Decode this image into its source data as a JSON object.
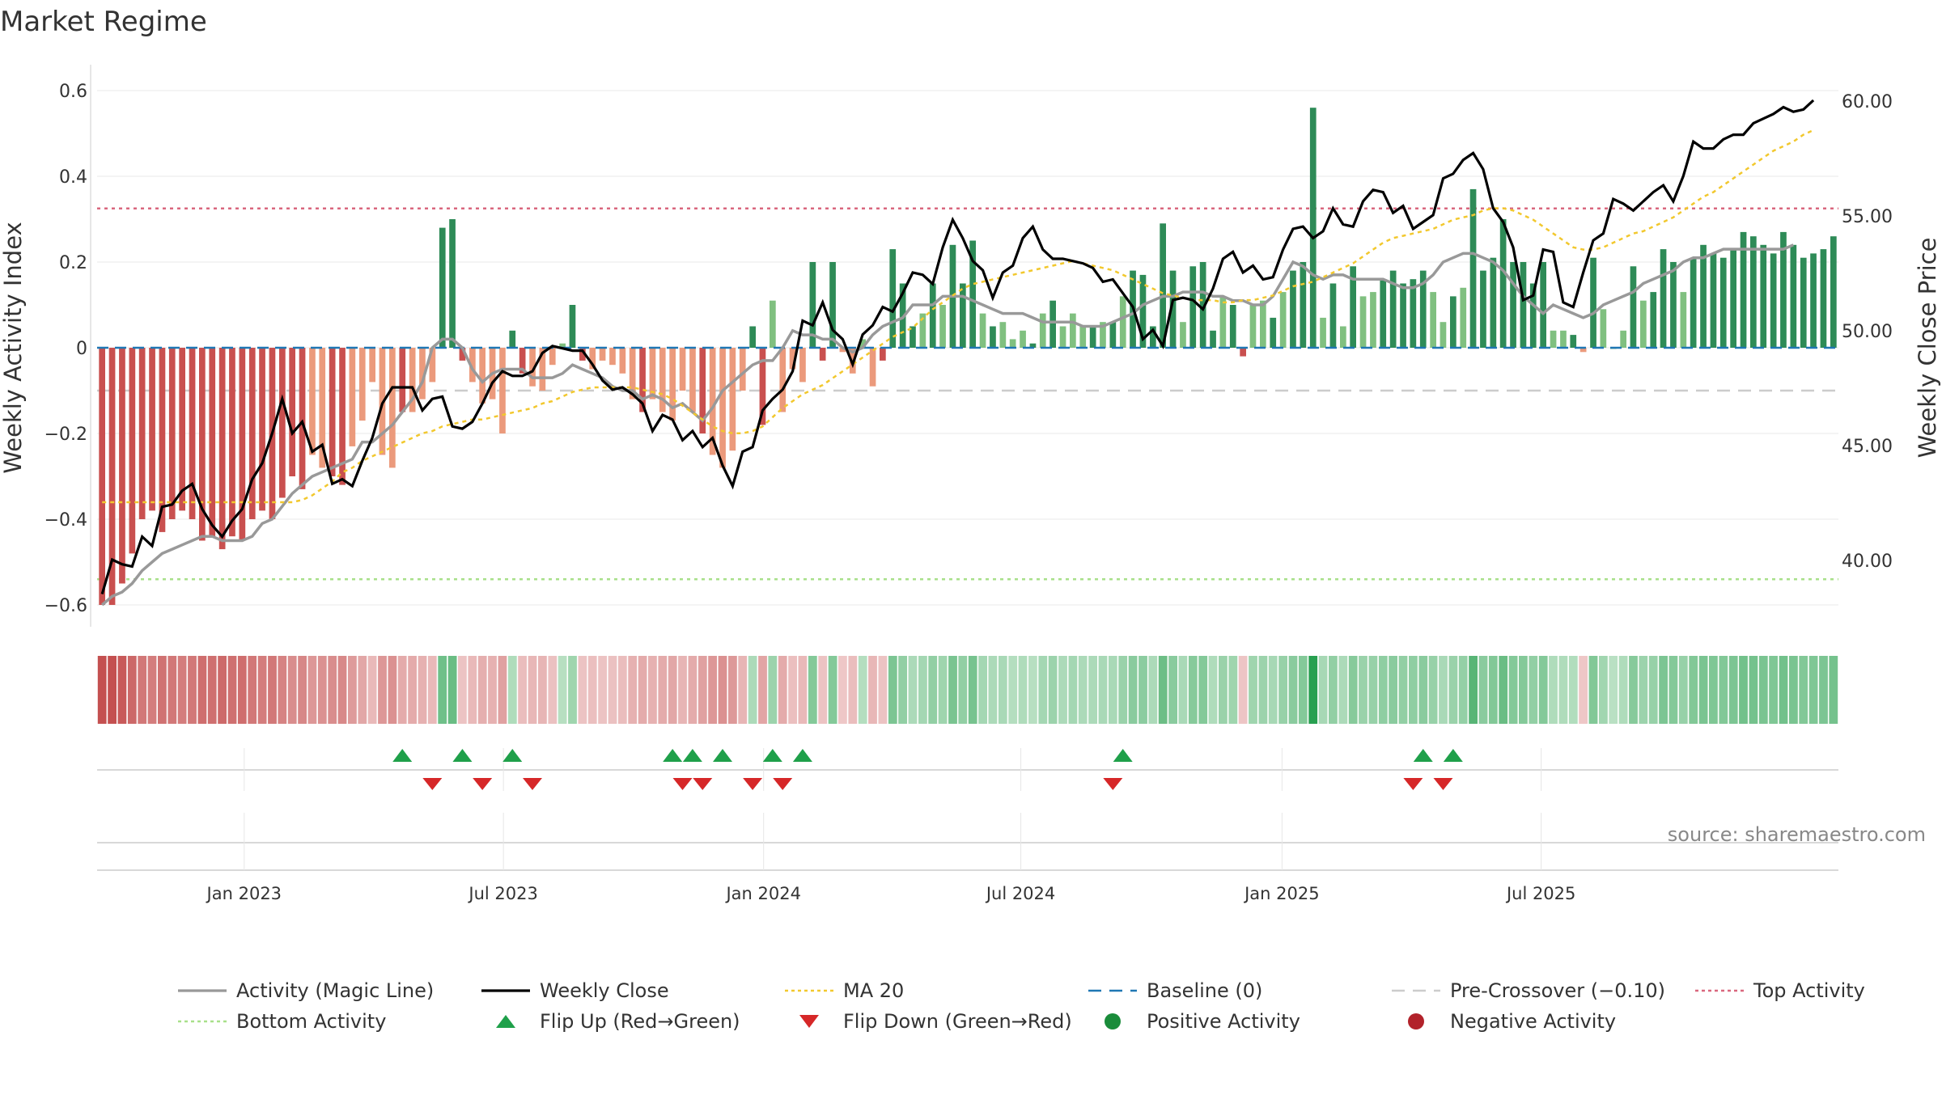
{
  "chart_data": {
    "type": "bar",
    "title": "Market Regime",
    "source": "source: sharemaestro.com",
    "left_axis": {
      "label": "Weekly Activity Index",
      "ylim": [
        -0.66,
        0.66
      ],
      "ticks": [
        0.6,
        0.4,
        0.2,
        0,
        -0.2,
        -0.4,
        -0.6
      ],
      "tick_labels": [
        "0.6",
        "0.4",
        "0.2",
        "0",
        "−0.2",
        "−0.4",
        "−0.6"
      ]
    },
    "right_axis": {
      "label": "Weekly Close Price",
      "ticks": [
        60,
        55,
        50,
        45,
        40
      ],
      "tick_labels": [
        "60.00",
        "55.00",
        "50.00",
        "45.00",
        "40.00"
      ]
    },
    "x_axis": {
      "tick_labels": [
        "Jan 2023",
        "Jul 2023",
        "Jan 2024",
        "Jul 2024",
        "Jan 2025",
        "Jul 2025"
      ],
      "tick_positions": [
        14.2,
        40.1,
        66.1,
        91.8,
        117.9,
        143.8
      ]
    },
    "reference_lines": {
      "baseline": 0,
      "pre_crossover": -0.1,
      "top_activity": 0.325,
      "bottom_activity": -0.54
    },
    "activity_bars": [
      -0.6,
      -0.6,
      -0.55,
      -0.48,
      -0.4,
      -0.38,
      -0.43,
      -0.4,
      -0.38,
      -0.4,
      -0.45,
      -0.44,
      -0.47,
      -0.44,
      -0.45,
      -0.4,
      -0.38,
      -0.4,
      -0.35,
      -0.3,
      -0.33,
      -0.25,
      -0.28,
      -0.3,
      -0.32,
      -0.23,
      -0.17,
      -0.08,
      -0.25,
      -0.28,
      -0.15,
      -0.15,
      -0.12,
      -0.08,
      0.28,
      0.3,
      -0.03,
      -0.08,
      -0.13,
      -0.12,
      -0.2,
      0.04,
      -0.06,
      -0.09,
      -0.1,
      -0.04,
      0.01,
      0.1,
      -0.03,
      -0.05,
      -0.03,
      -0.04,
      -0.06,
      -0.12,
      -0.15,
      -0.12,
      -0.15,
      -0.17,
      -0.1,
      -0.15,
      -0.2,
      -0.25,
      -0.28,
      -0.24,
      -0.1,
      0.05,
      -0.18,
      0.11,
      -0.15,
      -0.05,
      -0.08,
      0.2,
      -0.03,
      0.2,
      -0.01,
      -0.06,
      0.02,
      -0.09,
      -0.03,
      0.23,
      0.15,
      0.05,
      0.08,
      0.15,
      0.1,
      0.24,
      0.15,
      0.25,
      0.08,
      0.05,
      0.06,
      0.02,
      0.04,
      0.01,
      0.08,
      0.11,
      0.05,
      0.08,
      0.05,
      0.05,
      0.06,
      0.06,
      0.12,
      0.18,
      0.17,
      0.05,
      0.29,
      0.18,
      0.06,
      0.19,
      0.2,
      0.04,
      0.12,
      0.1,
      -0.02,
      0.1,
      0.11,
      0.07,
      0.13,
      0.18,
      0.2,
      0.56,
      0.07,
      0.15,
      0.05,
      0.19,
      0.12,
      0.13,
      0.16,
      0.18,
      0.15,
      0.16,
      0.18,
      0.13,
      0.06,
      0.12,
      0.14,
      0.37,
      0.18,
      0.21,
      0.3,
      0.2,
      0.2,
      0.15,
      0.2,
      0.04,
      0.04,
      0.03,
      -0.01,
      0.21,
      0.09,
      0.0,
      0.04,
      0.19,
      0.11,
      0.13,
      0.23,
      0.2,
      0.13,
      0.21,
      0.24,
      0.22,
      0.21,
      0.23,
      0.27,
      0.26,
      0.24,
      0.22,
      0.27,
      0.24,
      0.21,
      0.22,
      0.23,
      0.26
    ],
    "activity_magic_line": [
      -0.6,
      -0.58,
      -0.57,
      -0.55,
      -0.52,
      -0.5,
      -0.48,
      -0.47,
      -0.46,
      -0.45,
      -0.44,
      -0.44,
      -0.45,
      -0.45,
      -0.45,
      -0.44,
      -0.41,
      -0.4,
      -0.37,
      -0.34,
      -0.32,
      -0.3,
      -0.29,
      -0.28,
      -0.27,
      -0.26,
      -0.22,
      -0.22,
      -0.2,
      -0.18,
      -0.15,
      -0.12,
      -0.08,
      0.0,
      0.02,
      0.02,
      0.0,
      -0.05,
      -0.08,
      -0.06,
      -0.05,
      -0.05,
      -0.05,
      -0.07,
      -0.07,
      -0.07,
      -0.06,
      -0.04,
      -0.05,
      -0.06,
      -0.07,
      -0.09,
      -0.1,
      -0.1,
      -0.12,
      -0.11,
      -0.12,
      -0.14,
      -0.13,
      -0.15,
      -0.17,
      -0.14,
      -0.1,
      -0.08,
      -0.06,
      -0.04,
      -0.03,
      -0.03,
      0.0,
      0.04,
      0.03,
      0.03,
      0.02,
      0.02,
      0.0,
      -0.01,
      0.0,
      0.03,
      0.05,
      0.06,
      0.07,
      0.1,
      0.1,
      0.1,
      0.12,
      0.12,
      0.12,
      0.11,
      0.1,
      0.09,
      0.08,
      0.08,
      0.08,
      0.07,
      0.06,
      0.06,
      0.06,
      0.06,
      0.05,
      0.05,
      0.05,
      0.06,
      0.07,
      0.08,
      0.1,
      0.11,
      0.12,
      0.12,
      0.13,
      0.13,
      0.13,
      0.12,
      0.12,
      0.11,
      0.11,
      0.1,
      0.1,
      0.12,
      0.16,
      0.2,
      0.19,
      0.17,
      0.16,
      0.17,
      0.17,
      0.16,
      0.16,
      0.16,
      0.16,
      0.15,
      0.14,
      0.14,
      0.15,
      0.17,
      0.2,
      0.21,
      0.22,
      0.22,
      0.21,
      0.2,
      0.18,
      0.15,
      0.12,
      0.1,
      0.08,
      0.1,
      0.09,
      0.08,
      0.07,
      0.08,
      0.1,
      0.11,
      0.12,
      0.13,
      0.15,
      0.16,
      0.17,
      0.18,
      0.2,
      0.21,
      0.21,
      0.22,
      0.23,
      0.23,
      0.23,
      0.23,
      0.23,
      0.23,
      0.23,
      0.24
    ],
    "weekly_close": [
      38.5,
      40,
      39.8,
      39.7,
      41,
      40.6,
      42.3,
      42.4,
      43,
      43.3,
      42.2,
      41.5,
      41,
      41.7,
      42.2,
      43.5,
      44.2,
      45.5,
      47,
      45.5,
      46,
      44.7,
      45,
      43.3,
      43.5,
      43.2,
      44.3,
      45.3,
      46.8,
      47.5,
      47.5,
      47.5,
      46.5,
      47,
      47.1,
      45.8,
      45.7,
      46,
      46.8,
      47.7,
      48.2,
      48,
      48,
      48.2,
      49,
      49.3,
      49.2,
      49.1,
      49.1,
      48.5,
      47.8,
      47.4,
      47.5,
      47.2,
      46.8,
      45.6,
      46.3,
      46.1,
      45.2,
      45.6,
      44.9,
      45.3,
      44.1,
      43.2,
      44.7,
      44.9,
      46.5,
      47,
      47.4,
      48.2,
      50.4,
      50.2,
      51.2,
      50,
      49.6,
      48.5,
      49.8,
      50.2,
      51,
      50.8,
      51.6,
      52.5,
      52.4,
      52,
      53.6,
      54.8,
      54,
      53,
      52.6,
      51.4,
      52.5,
      52.8,
      54,
      54.5,
      53.5,
      53.1,
      53.1,
      53,
      52.9,
      52.7,
      52.1,
      52.2,
      51.6,
      51,
      49.6,
      50,
      49.3,
      51.3,
      51.4,
      51.3,
      50.9,
      51.8,
      53.1,
      53.4,
      52.5,
      52.8,
      52.2,
      52.3,
      53.5,
      54.4,
      54.5,
      54,
      54.3,
      55.3,
      54.6,
      54.5,
      55.6,
      56.1,
      56,
      55.1,
      55.4,
      54.4,
      54.7,
      55,
      56.6,
      56.8,
      57.4,
      57.7,
      57,
      55.3,
      54.7,
      53.6,
      51.3,
      51.5,
      53.5,
      53.4,
      51.2,
      51,
      52.5,
      53.9,
      54.2,
      55.7,
      55.5,
      55.2,
      55.6,
      56,
      56.3,
      55.6,
      56.7,
      58.2,
      57.9,
      57.9,
      58.3,
      58.5,
      58.5,
      59,
      59.2,
      59.4,
      59.7,
      59.5,
      59.6,
      60
    ],
    "ma_20": [
      42.5,
      42.5,
      42.5,
      42.5,
      42.5,
      42.5,
      42.5,
      42.5,
      42.5,
      42.5,
      42.5,
      42.5,
      42.5,
      42.5,
      42.5,
      42.5,
      42.5,
      42.5,
      42.5,
      42.5,
      42.6,
      42.8,
      43.1,
      43.4,
      43.8,
      44,
      44.3,
      44.5,
      44.7,
      44.9,
      45.1,
      45.3,
      45.5,
      45.6,
      45.8,
      45.9,
      46,
      46.1,
      46.1,
      46.2,
      46.3,
      46.4,
      46.5,
      46.6,
      46.8,
      46.9,
      47.1,
      47.3,
      47.4,
      47.5,
      47.5,
      47.5,
      47.5,
      47.5,
      47.4,
      47.3,
      47.2,
      47,
      46.7,
      46.4,
      46.1,
      45.8,
      45.6,
      45.5,
      45.5,
      45.6,
      45.8,
      46.2,
      46.6,
      46.9,
      47.2,
      47.4,
      47.6,
      47.9,
      48.2,
      48.5,
      48.8,
      49.1,
      49.4,
      49.7,
      49.9,
      50.1,
      50.5,
      50.9,
      51.2,
      51.5,
      51.8,
      52,
      52.1,
      52.2,
      52.3,
      52.4,
      52.5,
      52.6,
      52.7,
      52.8,
      52.9,
      53,
      52.9,
      52.8,
      52.7,
      52.6,
      52.4,
      52.2,
      52,
      51.8,
      51.6,
      51.5,
      51.4,
      51.3,
      51.3,
      51.3,
      51.2,
      51.2,
      51.3,
      51.3,
      51.4,
      51.5,
      51.7,
      51.9,
      52,
      52.1,
      52.3,
      52.5,
      52.7,
      52.9,
      53.2,
      53.5,
      53.8,
      54,
      54.1,
      54.2,
      54.3,
      54.4,
      54.6,
      54.8,
      54.9,
      55,
      55.2,
      55.3,
      55.3,
      55.2,
      55,
      54.8,
      54.5,
      54.2,
      53.9,
      53.6,
      53.5,
      53.5,
      53.6,
      53.8,
      54,
      54.2,
      54.3,
      54.5,
      54.7,
      54.9,
      55.2,
      55.5,
      55.8,
      56,
      56.3,
      56.6,
      56.9,
      57.2,
      57.5,
      57.8,
      58,
      58.2,
      58.5,
      58.7
    ],
    "flip_up_weeks": [
      30,
      36,
      41,
      57,
      59,
      62,
      67,
      70,
      102,
      132,
      135
    ],
    "flip_down_weeks": [
      33,
      38,
      43,
      58,
      60,
      65,
      68,
      101,
      131,
      134
    ],
    "legend": [
      {
        "label": "Activity (Magic Line)",
        "style": "line",
        "color": "#999999"
      },
      {
        "label": "Weekly Close",
        "style": "line",
        "color": "#000000"
      },
      {
        "label": "MA 20",
        "style": "dotted",
        "color": "#f2c82e"
      },
      {
        "label": "Baseline (0)",
        "style": "dashed",
        "color": "#1f77b4"
      },
      {
        "label": "Pre-Crossover (−0.10)",
        "style": "dashed",
        "color": "#cccccc"
      },
      {
        "label": "Top Activity",
        "style": "dotted",
        "color": "#d9677e"
      },
      {
        "label": "Bottom Activity",
        "style": "dotted",
        "color": "#a8e08a"
      },
      {
        "label": "Flip Up (Red→Green)",
        "style": "triangle-up",
        "color": "#1fa04a"
      },
      {
        "label": "Flip Down (Green→Red)",
        "style": "triangle-down",
        "color": "#d62728"
      },
      {
        "label": "Positive Activity",
        "style": "circle",
        "color": "#1a8c3a"
      },
      {
        "label": "Negative Activity",
        "style": "circle",
        "color": "#b2222a"
      }
    ],
    "colors": {
      "bar_strong_positive": "#2e8b57",
      "bar_weak_positive": "#80c080",
      "bar_strong_negative": "#c9504f",
      "bar_weak_negative": "#eb9a7c",
      "grid": "#e8e8e8"
    }
  }
}
